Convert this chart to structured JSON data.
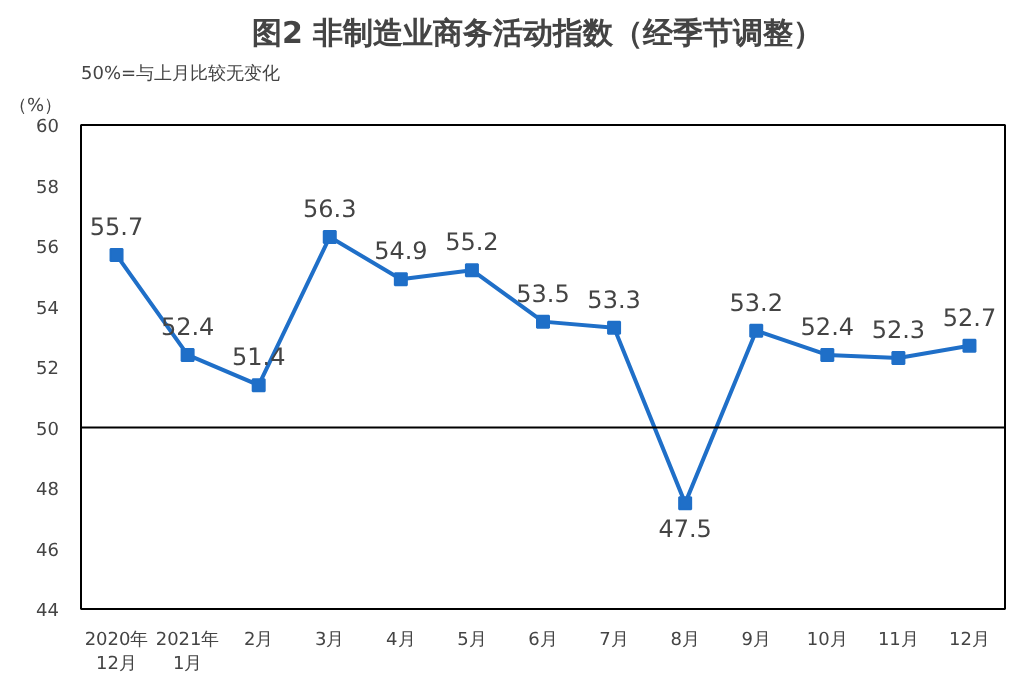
{
  "chart_data": {
    "type": "line",
    "title": "图2  非制造业商务活动指数（经季节调整）",
    "ylabel": "（%）",
    "annotations": [
      "50%=与上月比较无变化"
    ],
    "categories": [
      "2020年\n12月",
      "2021年\n1月",
      "2月",
      "3月",
      "4月",
      "5月",
      "6月",
      "7月",
      "8月",
      "9月",
      "10月",
      "11月",
      "12月"
    ],
    "series": [
      {
        "color": "#1f6fc8",
        "values": [
          55.7,
          52.4,
          51.4,
          56.3,
          54.9,
          55.2,
          53.5,
          53.3,
          47.5,
          53.2,
          52.4,
          52.3,
          52.7
        ]
      }
    ],
    "ylim": [
      44,
      60
    ],
    "yticks": [
      44,
      46,
      48,
      50,
      52,
      54,
      56,
      58,
      60
    ],
    "ref_lines": [
      {
        "axis": "y",
        "value": 50,
        "color": "#000000"
      }
    ],
    "data_labels": true,
    "marker": "square",
    "line_style": "solid",
    "grid": false
  }
}
